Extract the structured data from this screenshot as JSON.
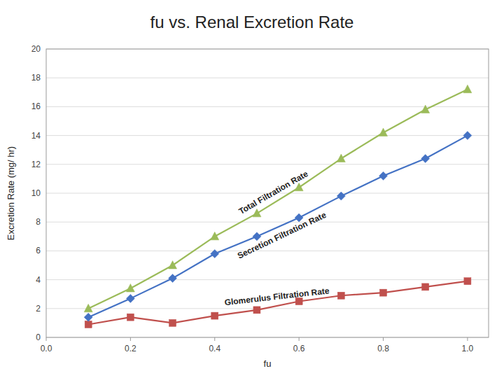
{
  "chart_data": {
    "type": "line",
    "title": "fu vs. Renal Excretion Rate",
    "xlabel": "fu",
    "ylabel": "Excretion Rate (mg/ hr)",
    "x": [
      0.1,
      0.2,
      0.3,
      0.4,
      0.5,
      0.6,
      0.7,
      0.8,
      0.9,
      1.0
    ],
    "series": [
      {
        "name": "Glomerulus Filtration Rate",
        "color": "#C0504D",
        "marker": "square",
        "values": [
          0.9,
          1.4,
          1.0,
          1.5,
          1.9,
          2.5,
          2.9,
          3.1,
          3.5,
          3.9
        ]
      },
      {
        "name": "Secretion Filtration Rate",
        "color": "#4472C4",
        "marker": "diamond",
        "values": [
          1.4,
          2.7,
          4.1,
          5.8,
          7.0,
          8.3,
          9.8,
          11.2,
          12.4,
          14.0
        ]
      },
      {
        "name": "Total Filtration Rate",
        "color": "#9BBB59",
        "marker": "triangle",
        "values": [
          2.0,
          3.4,
          5.0,
          7.0,
          8.6,
          10.4,
          12.4,
          14.2,
          15.8,
          17.2
        ]
      }
    ],
    "xlim": [
      0,
      1.05
    ],
    "ylim": [
      0,
      20
    ],
    "xticks": [
      {
        "value": 0,
        "label": "0.0"
      },
      0.2,
      0.4,
      0.6,
      0.8,
      {
        "value": 1.0,
        "label": "1.0"
      }
    ],
    "yticks": [
      0,
      2,
      4,
      6,
      8,
      10,
      12,
      14,
      16,
      18,
      20
    ],
    "grid": true
  }
}
